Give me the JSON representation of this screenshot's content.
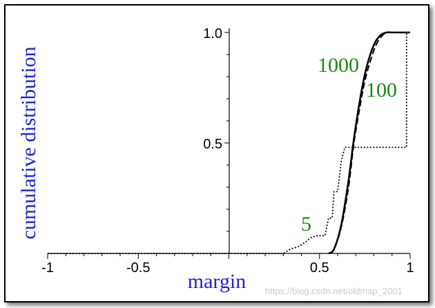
{
  "chart_data": {
    "type": "line",
    "title": "",
    "xlabel": "margin",
    "ylabel": "cumulative distribution",
    "xlim": [
      -1,
      1
    ],
    "ylim": [
      0,
      1
    ],
    "x_ticks": [
      -1,
      -0.5,
      0.5,
      1
    ],
    "x_tick_labels": [
      "-1",
      "-0.5",
      "0.5",
      "1"
    ],
    "y_ticks": [
      0.5,
      1.0
    ],
    "y_tick_labels": [
      "0.5",
      "1.0"
    ],
    "series": [
      {
        "name": "1000",
        "style": "solid",
        "x": [
          0.55,
          0.58,
          0.62,
          0.66,
          0.69,
          0.72,
          0.75,
          0.78,
          0.81,
          0.84,
          0.87,
          0.9,
          0.95,
          1.0
        ],
        "y": [
          0.0,
          0.02,
          0.13,
          0.33,
          0.52,
          0.68,
          0.81,
          0.9,
          0.96,
          0.99,
          1.0,
          1.0,
          1.0,
          1.0
        ]
      },
      {
        "name": "100",
        "style": "dashed",
        "x": [
          0.55,
          0.58,
          0.62,
          0.66,
          0.69,
          0.72,
          0.75,
          0.78,
          0.81,
          0.84,
          0.87,
          0.9,
          0.95,
          1.0
        ],
        "y": [
          0.0,
          0.02,
          0.12,
          0.3,
          0.5,
          0.65,
          0.78,
          0.87,
          0.94,
          0.98,
          1.0,
          1.0,
          1.0,
          1.0
        ]
      },
      {
        "name": "5",
        "style": "dotted",
        "x": [
          -1.0,
          0.3,
          0.34,
          0.38,
          0.42,
          0.45,
          0.48,
          0.53,
          0.55,
          0.57,
          0.58,
          0.6,
          0.62,
          0.64,
          0.66,
          0.98,
          0.98,
          1.0
        ],
        "y": [
          0.0,
          0.0,
          0.02,
          0.03,
          0.05,
          0.07,
          0.08,
          0.08,
          0.16,
          0.16,
          0.28,
          0.28,
          0.42,
          0.48,
          0.48,
          0.48,
          1.0,
          1.0
        ]
      }
    ],
    "series_label_color": "#1a8a1a",
    "axis_label_color": "#1f1fd6"
  },
  "watermark": "https://blog.csdn.net/oldmap_2001"
}
